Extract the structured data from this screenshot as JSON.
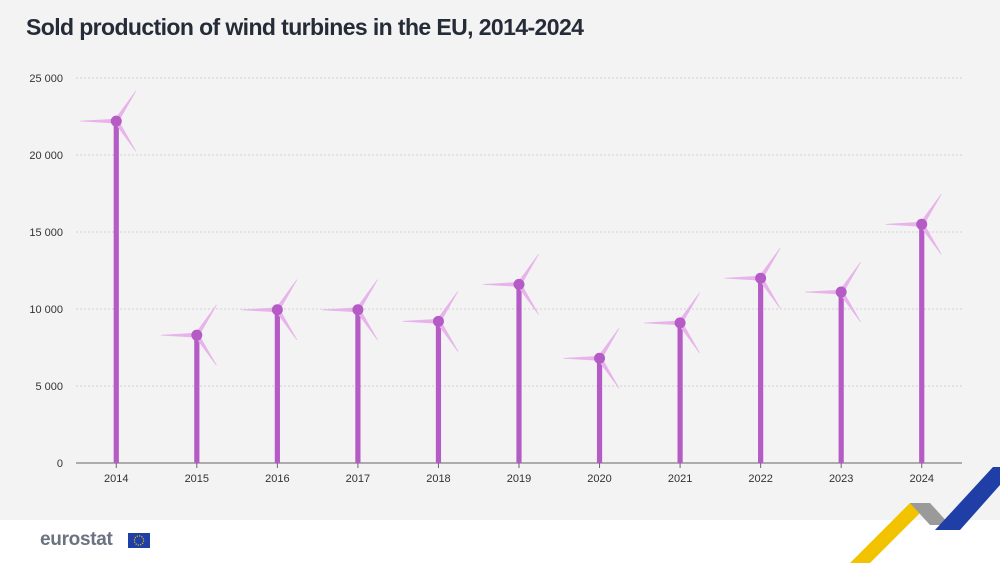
{
  "header": {
    "title": "Sold production of wind turbines in the EU, 2014-2024"
  },
  "footer": {
    "brand": "eurostat"
  },
  "colors": {
    "pole": "#b45bc6",
    "hub": "#b45bc6",
    "blade": "#e8b3ea",
    "grid": "#c8c8c8",
    "axis": "#666666",
    "yellow": "#f2c300",
    "blue": "#1f3ea6",
    "grey": "#9a9a9a"
  },
  "chart_data": {
    "type": "bar",
    "categories": [
      "2014",
      "2015",
      "2016",
      "2017",
      "2018",
      "2019",
      "2020",
      "2021",
      "2022",
      "2023",
      "2024"
    ],
    "values": [
      22200,
      8300,
      9950,
      9950,
      9200,
      11600,
      6800,
      9100,
      12000,
      11100,
      15500
    ],
    "title": "Sold production of wind turbines in the EU, 2014-2024",
    "xlabel": "",
    "ylabel": "",
    "ylim": [
      0,
      25000
    ],
    "yticks": [
      0,
      5000,
      10000,
      15000,
      20000,
      25000
    ],
    "ytick_labels": [
      "0",
      "5 000",
      "10 000",
      "15 000",
      "20 000",
      "25 000"
    ],
    "grid": true,
    "marker": "wind-turbine"
  }
}
